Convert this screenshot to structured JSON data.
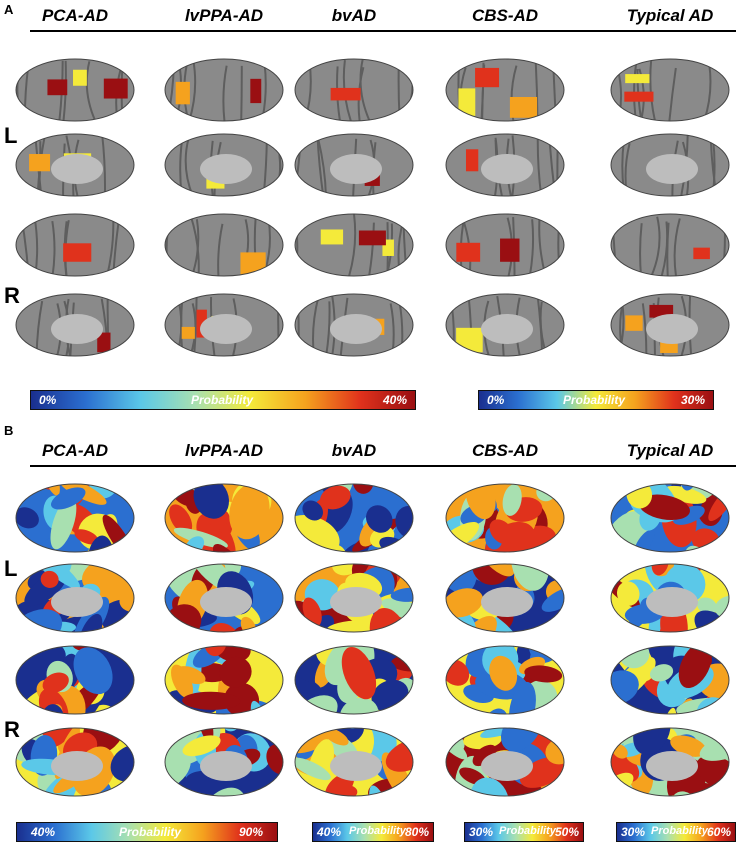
{
  "panels": {
    "a": {
      "letter": "A"
    },
    "b": {
      "letter": "B"
    }
  },
  "columns": [
    "PCA-AD",
    "lvPPA-AD",
    "bvAD",
    "CBS-AD",
    "Typical AD"
  ],
  "hemispheres": {
    "left": "L",
    "right": "R"
  },
  "colorbars": {
    "a1": {
      "min": "0%",
      "label": "Probability",
      "max": "40%"
    },
    "a2": {
      "min": "0%",
      "label": "Probability",
      "max": "30%"
    },
    "b1": {
      "min": "40%",
      "label": "Probability",
      "max": "90%"
    },
    "b2": {
      "min": "40%",
      "label": "Probability",
      "max": "80%"
    },
    "b3": {
      "min": "30%",
      "label": "Probability",
      "max": "50%"
    },
    "b4": {
      "min": "30%",
      "label": "Probability",
      "max": "60%"
    }
  },
  "colors": {
    "jet": [
      "#1a2f8f",
      "#2b6fd0",
      "#5bc8e8",
      "#a8e0b0",
      "#f4ea3a",
      "#f5a21e",
      "#e0321c",
      "#9a0f12"
    ],
    "cortex": "#8a8a8a",
    "medial_wall": "#bdbdbd"
  }
}
